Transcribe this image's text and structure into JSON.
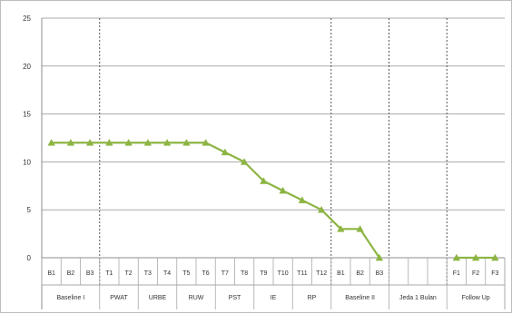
{
  "chart_data": {
    "type": "line",
    "ylim": [
      0,
      25
    ],
    "yticks": [
      0,
      5,
      10,
      15,
      20,
      25
    ],
    "grid": true,
    "categories": [
      "B1",
      "B2",
      "B3",
      "T1",
      "T2",
      "T3",
      "T4",
      "T5",
      "T6",
      "T7",
      "T8",
      "T9",
      "T10",
      "T11",
      "T12",
      "B1",
      "B2",
      "B3",
      "",
      "",
      "",
      "F1",
      "F2",
      "F3"
    ],
    "phases": [
      {
        "label": "Baseline I",
        "start": 0,
        "end": 2
      },
      {
        "label": "PWAT",
        "start": 3,
        "end": 4
      },
      {
        "label": "URBE",
        "start": 5,
        "end": 6
      },
      {
        "label": "RUW",
        "start": 7,
        "end": 8
      },
      {
        "label": "PST",
        "start": 9,
        "end": 10
      },
      {
        "label": "IE",
        "start": 11,
        "end": 12
      },
      {
        "label": "RP",
        "start": 13,
        "end": 14
      },
      {
        "label": "Baseline II",
        "start": 15,
        "end": 17
      },
      {
        "label": "Jeda 1 Bulan",
        "start": 18,
        "end": 20
      },
      {
        "label": "Follow Up",
        "start": 21,
        "end": 23
      }
    ],
    "phase_dividers": [
      3,
      15,
      18,
      21
    ],
    "series": [
      {
        "color": "#8db544",
        "segments": [
          {
            "start": 0,
            "values": [
              12,
              12,
              12,
              12,
              12,
              12,
              12,
              12,
              12,
              11,
              10,
              8,
              7,
              6,
              5,
              3,
              3,
              0
            ]
          },
          {
            "start": 21,
            "values": [
              0,
              0,
              0
            ]
          }
        ]
      }
    ]
  },
  "colors": {
    "grid": "#a9a9a9",
    "divider": "#555555",
    "axis": "#8c8c8c"
  }
}
